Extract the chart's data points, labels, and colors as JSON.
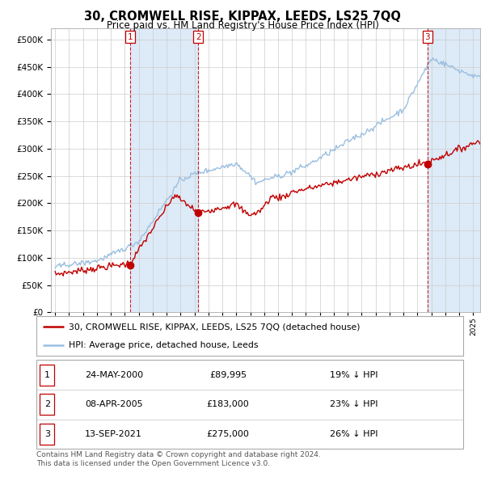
{
  "title": "30, CROMWELL RISE, KIPPAX, LEEDS, LS25 7QQ",
  "subtitle": "Price paid vs. HM Land Registry's House Price Index (HPI)",
  "legend_label_red": "30, CROMWELL RISE, KIPPAX, LEEDS, LS25 7QQ (detached house)",
  "legend_label_blue": "HPI: Average price, detached house, Leeds",
  "footer": "Contains HM Land Registry data © Crown copyright and database right 2024.\nThis data is licensed under the Open Government Licence v3.0.",
  "transactions": [
    {
      "num": 1,
      "date": "24-MAY-2000",
      "price": "£89,995",
      "hpi": "19% ↓ HPI",
      "year": 2000.38
    },
    {
      "num": 2,
      "date": "08-APR-2005",
      "price": "£183,000",
      "hpi": "23% ↓ HPI",
      "year": 2005.27
    },
    {
      "num": 3,
      "date": "13-SEP-2021",
      "price": "£275,000",
      "hpi": "26% ↓ HPI",
      "year": 2021.71
    }
  ],
  "transaction_prices": [
    89995,
    183000,
    275000
  ],
  "transaction_years": [
    2000.38,
    2005.27,
    2021.71
  ],
  "ylim": [
    0,
    520000
  ],
  "xlim_start": 1994.7,
  "xlim_end": 2025.5,
  "hpi_color": "#9bbfe0",
  "price_color": "#c00000",
  "shade_color": "#ddeaf7",
  "background_color": "#ffffff",
  "grid_color": "#cccccc"
}
